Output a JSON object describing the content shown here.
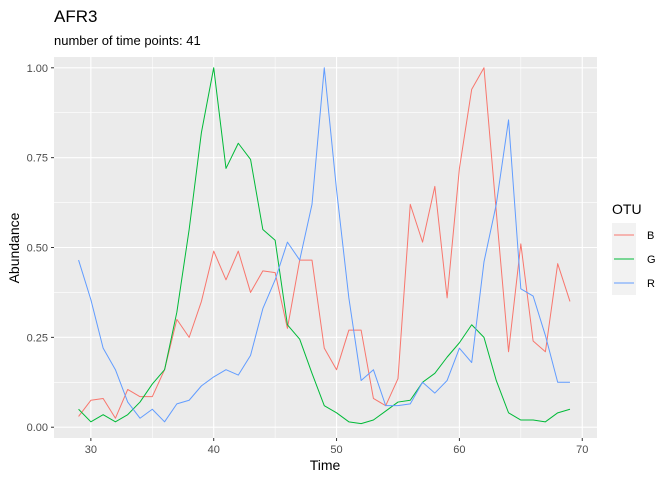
{
  "chart_data": {
    "type": "line",
    "title": "AFR3",
    "subtitle": "number of time points: 41",
    "xlabel": "Time",
    "ylabel": "Abundance",
    "xlim": [
      27,
      71.2
    ],
    "ylim": [
      -0.03,
      1.03
    ],
    "x_ticks": [
      30,
      40,
      50,
      60,
      70
    ],
    "y_ticks": [
      0.0,
      0.25,
      0.5,
      0.75,
      1.0
    ],
    "y_tick_labels": [
      "0.00",
      "0.25",
      "0.50",
      "0.75",
      "1.00"
    ],
    "grid": true,
    "legend": {
      "title": "OTU",
      "position": "right"
    },
    "x": [
      29,
      30,
      31,
      32,
      33,
      34,
      35,
      36,
      37,
      38,
      39,
      40,
      41,
      42,
      43,
      44,
      45,
      46,
      47,
      48,
      49,
      50,
      51,
      52,
      53,
      54,
      55,
      56,
      57,
      58,
      59,
      60,
      61,
      62,
      63,
      64,
      65,
      66,
      67,
      68,
      69
    ],
    "series": [
      {
        "name": "B",
        "color": "#F8766D",
        "values": [
          0.03,
          0.075,
          0.08,
          0.025,
          0.105,
          0.085,
          0.085,
          0.16,
          0.3,
          0.25,
          0.35,
          0.49,
          0.41,
          0.49,
          0.375,
          0.435,
          0.43,
          0.275,
          0.465,
          0.465,
          0.22,
          0.16,
          0.27,
          0.27,
          0.08,
          0.06,
          0.135,
          0.62,
          0.515,
          0.67,
          0.36,
          0.72,
          0.94,
          1.0,
          0.6,
          0.21,
          0.51,
          0.24,
          0.21,
          0.455,
          0.35
        ]
      },
      {
        "name": "G",
        "color": "#00BA38",
        "values": [
          0.05,
          0.015,
          0.035,
          0.015,
          0.035,
          0.07,
          0.12,
          0.16,
          0.32,
          0.55,
          0.82,
          1.0,
          0.72,
          0.79,
          0.745,
          0.55,
          0.52,
          0.285,
          0.245,
          0.15,
          0.06,
          0.04,
          0.015,
          0.01,
          0.02,
          0.045,
          0.07,
          0.075,
          0.125,
          0.15,
          0.195,
          0.235,
          0.285,
          0.25,
          0.13,
          0.04,
          0.02,
          0.02,
          0.015,
          0.04,
          0.05
        ]
      },
      {
        "name": "R",
        "color": "#619CFF",
        "values": [
          0.465,
          0.355,
          0.22,
          0.16,
          0.07,
          0.025,
          0.05,
          0.015,
          0.065,
          0.075,
          0.115,
          0.14,
          0.16,
          0.145,
          0.2,
          0.33,
          0.41,
          0.515,
          0.465,
          0.62,
          1.0,
          0.66,
          0.36,
          0.13,
          0.16,
          0.06,
          0.06,
          0.065,
          0.125,
          0.095,
          0.13,
          0.22,
          0.18,
          0.46,
          0.62,
          0.855,
          0.385,
          0.365,
          0.255,
          0.125,
          0.125
        ]
      }
    ]
  }
}
